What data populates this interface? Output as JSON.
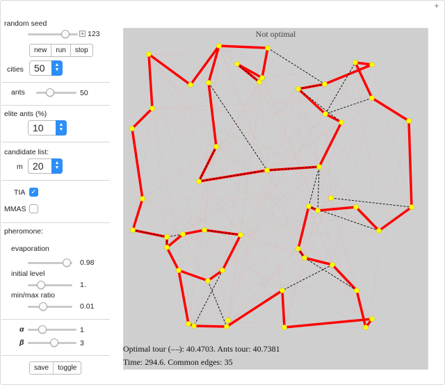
{
  "controls": {
    "random_seed": {
      "label": "random seed",
      "value": "123",
      "fraction": 0.8
    },
    "seed_buttons": [
      "new",
      "run",
      "stop"
    ],
    "cities": {
      "label": "cities",
      "value": "50"
    },
    "ants": {
      "label": "ants",
      "value": "50",
      "fraction": 0.3
    },
    "elite_ants": {
      "label": "elite ants (%)",
      "value": "10"
    },
    "candidate_list": {
      "label": "candidate list:",
      "m_label": "m",
      "value": "20"
    },
    "tia": {
      "label": "TIA",
      "checked": true
    },
    "mmas": {
      "label": "MMAS",
      "checked": false
    },
    "pheromone": {
      "label": "pheromone:",
      "evaporation": {
        "label": "evaporation",
        "value": "0.98",
        "fraction": 0.97
      },
      "initial_level": {
        "label": "initial level",
        "value": "1.",
        "fraction": 0.25
      },
      "minmax_ratio": {
        "label": "min/max ratio",
        "value": "0.01",
        "fraction": 0.3
      }
    },
    "alpha": {
      "label": "α",
      "value": "1",
      "fraction": 0.25
    },
    "beta": {
      "label": "β",
      "value": "3",
      "fraction": 0.55
    },
    "bottom_buttons": [
      "save",
      "toggle"
    ]
  },
  "plot": {
    "title": "Not optimal",
    "info_line1_a": "Optimal tour (",
    "info_line1_b": "): 40.4703. Ants tour: 40.7381",
    "info_line2": "Time: 294.6. Common edges: 35",
    "colors": {
      "ants_tour": "#ff0000",
      "optimal_tour": "#000000",
      "city": "#ffff00",
      "background": "#cfcfcf"
    }
  }
}
